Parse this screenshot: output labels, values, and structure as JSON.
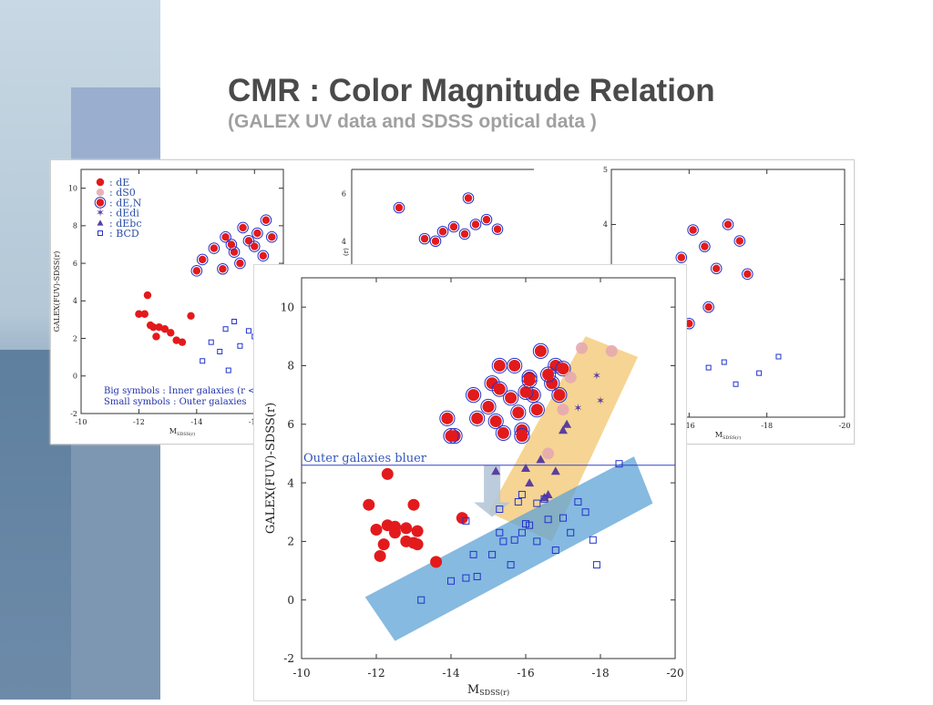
{
  "slide": {
    "title": "CMR : Color Magnitude Relation",
    "subtitle": "(GALEX UV data and SDSS optical data )",
    "annotation": "Outer galaxies bluer"
  },
  "colors": {
    "red": "#e31a1c",
    "pink": "#e7aab0",
    "blue": "#2233cc",
    "purple": "#5a3fa0",
    "band_orange": "#f3c66f",
    "band_blue": "#5ea3d6",
    "arrow": "#b6c6d8"
  },
  "legend": {
    "items": [
      "dE",
      "dS0",
      "dE,N",
      "dEdi",
      "dEbc",
      "BCD"
    ],
    "notes": [
      "Big symbols : Inner galaxies (r <",
      "Small symbols : Outer galaxies"
    ]
  },
  "chart_data": [
    {
      "type": "scatter",
      "panel": "left-background",
      "ylabel": "GALEX(FUV)-SDSS(r)",
      "xlabel": "M",
      "xlabel_sub": "SDSS(r)",
      "xlim": [
        -10,
        -17
      ],
      "ylim": [
        -2,
        11
      ],
      "xticks": [
        -10,
        -12,
        -14,
        -16
      ],
      "yticks": [
        -2,
        0,
        2,
        4,
        6,
        8,
        10
      ],
      "series": [
        {
          "name": "dE",
          "symbol": "dot",
          "x": [
            -12.3,
            -12.5,
            -12.6,
            -12.9,
            -13.1,
            -13.5,
            -12.2,
            -12.7,
            -13.3,
            -13.8,
            -12.0,
            -12.4
          ],
          "y": [
            4.3,
            2.6,
            2.1,
            2.5,
            2.3,
            1.8,
            3.3,
            2.6,
            1.9,
            3.2,
            3.3,
            2.7
          ]
        },
        {
          "name": "dE,N",
          "symbol": "ringed-dot",
          "x": [
            -14.2,
            -14.6,
            -15.0,
            -15.3,
            -15.6,
            -15.8,
            -16.1,
            -16.4,
            -14.9,
            -15.5,
            -16.0,
            -16.6,
            -14.0,
            -15.2,
            -16.3
          ],
          "y": [
            6.2,
            6.8,
            7.4,
            6.6,
            7.9,
            7.2,
            7.6,
            8.3,
            5.7,
            6.0,
            6.9,
            7.4,
            5.6,
            7.0,
            6.4
          ]
        },
        {
          "name": "BCD",
          "symbol": "open-square",
          "x": [
            -14.5,
            -15.0,
            -15.3,
            -15.8,
            -16.0,
            -14.8,
            -15.5,
            -16.3,
            -14.2,
            -15.1,
            -16.6
          ],
          "y": [
            1.8,
            2.5,
            2.9,
            2.4,
            2.1,
            1.3,
            1.6,
            2.8,
            0.8,
            0.3,
            3.2
          ]
        }
      ]
    },
    {
      "type": "scatter",
      "panel": "center-background",
      "ylabel": "(r)",
      "yticks": [
        6,
        4
      ],
      "series": [
        {
          "name": "dE,N",
          "symbol": "ringed-dot",
          "x": [
            -12.8,
            -13.5,
            -14.0,
            -14.3,
            -14.6,
            -14.9,
            -15.2,
            -15.5,
            -13.8,
            -14.7
          ],
          "y": [
            5.4,
            4.1,
            4.4,
            4.6,
            4.3,
            4.7,
            4.9,
            4.5,
            4.0,
            5.8
          ]
        }
      ]
    },
    {
      "type": "scatter",
      "panel": "right-background",
      "xlabel": "M",
      "xlabel_sub": "SDSS(r)",
      "xlim": [
        -14,
        -20
      ],
      "ylim": [
        0.5,
        5
      ],
      "xticks": [
        -14,
        -16,
        -18,
        -20
      ],
      "yticks": [
        3,
        4,
        5
      ],
      "series": [
        {
          "name": "dE,N",
          "symbol": "ringed-dot",
          "x": [
            -15.4,
            -15.8,
            -16.1,
            -16.4,
            -16.7,
            -17.0,
            -17.3,
            -15.6,
            -16.5,
            -17.5,
            -16.0,
            -15.2
          ],
          "y": [
            3.0,
            3.4,
            3.9,
            3.6,
            3.2,
            4.0,
            3.7,
            2.8,
            2.5,
            3.1,
            2.2,
            1.8
          ]
        },
        {
          "name": "BCD",
          "symbol": "open-square",
          "x": [
            -14.6,
            -15.2,
            -15.8,
            -16.5,
            -17.2,
            -17.8,
            -18.3,
            -15.0,
            -16.9
          ],
          "y": [
            1.0,
            1.2,
            0.9,
            1.4,
            1.1,
            1.3,
            1.6,
            0.8,
            1.5
          ]
        }
      ]
    },
    {
      "type": "scatter",
      "panel": "main-foreground",
      "ylabel": "GALEX(FUV)-SDSS(r)",
      "xlabel": "M",
      "xlabel_sub": "SDSS(r)",
      "xlim": [
        -10,
        -20
      ],
      "ylim": [
        -2,
        11
      ],
      "xticks": [
        -10,
        -12,
        -14,
        -16,
        -18,
        -20
      ],
      "yticks": [
        -2,
        0,
        2,
        4,
        6,
        8,
        10
      ],
      "annotation": {
        "text": "Outer galaxies bluer",
        "line_y": 4.6
      },
      "bands": [
        {
          "color": "band_orange",
          "corners": [
            [
              -15.0,
              3.0
            ],
            [
              -16.7,
              2.0
            ],
            [
              -19.0,
              8.3
            ],
            [
              -17.6,
              9.0
            ]
          ]
        },
        {
          "color": "band_blue",
          "corners": [
            [
              -11.7,
              0.1
            ],
            [
              -12.5,
              -1.4
            ],
            [
              -19.4,
              3.3
            ],
            [
              -18.9,
              4.9
            ]
          ]
        }
      ],
      "series": [
        {
          "name": "dE",
          "symbol": "dot",
          "x": [
            -11.8,
            -12.0,
            -12.2,
            -12.3,
            -12.5,
            -12.5,
            -12.8,
            -12.8,
            -13.0,
            -13.1,
            -13.6,
            -12.3,
            -13.1,
            -14.3,
            -12.1,
            -13.0
          ],
          "y": [
            3.25,
            2.4,
            1.9,
            2.55,
            2.3,
            2.5,
            2.45,
            2.0,
            1.95,
            1.9,
            1.3,
            4.3,
            2.35,
            2.8,
            1.5,
            3.25
          ]
        },
        {
          "name": "dE,N",
          "symbol": "ringed-dot",
          "x": [
            -13.9,
            -14.1,
            -14.6,
            -14.7,
            -15.0,
            -15.1,
            -15.3,
            -15.3,
            -15.6,
            -15.7,
            -15.8,
            -15.9,
            -16.1,
            -16.2,
            -16.4,
            -16.7,
            -16.8,
            -16.9,
            -15.4,
            -16.0,
            -16.3,
            -16.6,
            -15.9,
            -16.1,
            -17.0,
            -15.2,
            -14.0
          ],
          "y": [
            6.2,
            5.6,
            7.0,
            6.2,
            6.6,
            7.4,
            8.0,
            7.2,
            6.9,
            8.0,
            6.4,
            5.8,
            7.6,
            7.0,
            8.5,
            7.4,
            8.0,
            7.0,
            5.7,
            7.1,
            6.5,
            7.7,
            5.6,
            7.5,
            7.9,
            6.1,
            5.6
          ]
        },
        {
          "name": "dS0",
          "symbol": "pink-dot",
          "x": [
            -17.2,
            -17.5,
            -18.3,
            -17.0,
            -16.6
          ],
          "y": [
            7.6,
            8.6,
            8.5,
            6.5,
            5.0
          ]
        },
        {
          "name": "dEdi",
          "symbol": "star",
          "x": [
            -17.9,
            -18.0,
            -17.4
          ],
          "y": [
            7.65,
            6.8,
            6.55
          ]
        },
        {
          "name": "dEbc",
          "symbol": "triangle",
          "x": [
            -16.0,
            -16.4,
            -16.8,
            -17.1,
            -15.2,
            -16.5,
            -17.0,
            -16.1,
            -16.6
          ],
          "y": [
            4.5,
            4.8,
            4.4,
            6.0,
            4.4,
            3.5,
            5.8,
            4.0,
            3.6
          ]
        },
        {
          "name": "BCD",
          "symbol": "open-square",
          "x": [
            -13.2,
            -14.0,
            -14.4,
            -14.6,
            -14.7,
            -15.1,
            -15.3,
            -15.4,
            -15.6,
            -15.7,
            -15.9,
            -16.0,
            -16.1,
            -16.3,
            -16.6,
            -16.8,
            -17.0,
            -17.2,
            -17.4,
            -17.6,
            -17.8,
            -17.9,
            -18.5,
            -14.4,
            -15.3,
            -15.8,
            -16.3,
            -15.9,
            -16.5
          ],
          "y": [
            0.0,
            0.65,
            0.75,
            1.55,
            0.8,
            1.55,
            2.3,
            2.0,
            1.2,
            2.05,
            2.3,
            2.6,
            2.55,
            2.0,
            2.75,
            1.7,
            2.8,
            2.3,
            3.35,
            3.0,
            2.05,
            1.2,
            4.65,
            2.7,
            3.1,
            3.35,
            3.3,
            3.6,
            3.45
          ]
        }
      ]
    }
  ]
}
